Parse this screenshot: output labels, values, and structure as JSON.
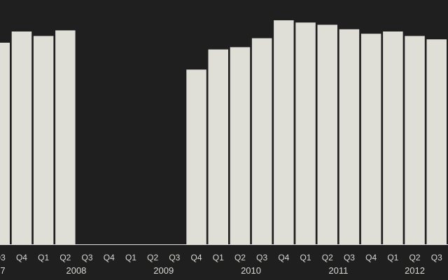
{
  "chart_data": {
    "type": "bar",
    "title": "",
    "xlabel": "",
    "ylabel": "",
    "colors": {
      "background": "#1f1f1f",
      "bar": "#dfdfd8",
      "text": "#d8d8d2"
    },
    "grid": false,
    "legend": "none",
    "ylim": [
      0,
      100
    ],
    "categories": [
      "Q3",
      "Q4",
      "Q1",
      "Q2",
      "Q3",
      "Q4",
      "Q1",
      "Q2",
      "Q3",
      "Q4",
      "Q1",
      "Q2",
      "Q3",
      "Q4",
      "Q1",
      "Q2",
      "Q3",
      "Q4",
      "Q1",
      "Q2",
      "Q3"
    ],
    "years": [
      {
        "label": "7",
        "start": 0,
        "end": 1
      },
      {
        "label": "2008",
        "start": 2,
        "end": 5
      },
      {
        "label": "2009",
        "start": 6,
        "end": 9
      },
      {
        "label": "2010",
        "start": 10,
        "end": 13
      },
      {
        "label": "2011",
        "start": 14,
        "end": 17
      },
      {
        "label": "2012",
        "start": 18,
        "end": 20
      }
    ],
    "values": [
      90,
      95,
      93,
      95.5,
      0,
      0,
      0,
      0,
      0,
      78,
      87,
      88,
      92,
      100,
      99,
      98,
      96,
      94,
      95,
      93,
      91.5
    ]
  }
}
